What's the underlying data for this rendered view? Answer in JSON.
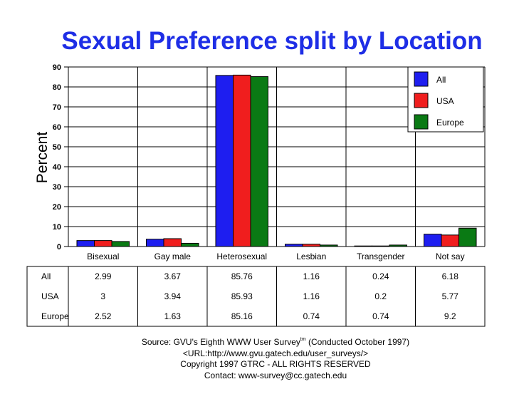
{
  "chart_data": {
    "type": "bar",
    "title": "Sexual Preference split by Location",
    "ylabel": "Percent",
    "xlabel": "",
    "ylim": [
      0,
      90
    ],
    "yticks": [
      "0",
      "10",
      "20",
      "30",
      "40",
      "50",
      "60",
      "70",
      "80",
      "90"
    ],
    "grid": true,
    "legend_position": "top-right",
    "categories": [
      "Bisexual",
      "Gay male",
      "Heterosexual",
      "Lesbian",
      "Transgender",
      "Not say"
    ],
    "series": [
      {
        "name": "All",
        "color": "#1e1ef0",
        "values": [
          2.99,
          3.67,
          85.76,
          1.16,
          0.24,
          6.18
        ],
        "labels": [
          "2.99",
          "3.67",
          "85.76",
          "1.16",
          "0.24",
          "6.18"
        ]
      },
      {
        "name": "USA",
        "color": "#f01e1e",
        "values": [
          3,
          3.94,
          85.93,
          1.16,
          0.2,
          5.77
        ],
        "labels": [
          "3",
          "3.94",
          "85.93",
          "1.16",
          "0.2",
          "5.77"
        ]
      },
      {
        "name": "Europe",
        "color": "#0a7a14",
        "values": [
          2.52,
          1.63,
          85.16,
          0.74,
          0.74,
          9.2
        ],
        "labels": [
          "2.52",
          "1.63",
          "85.16",
          "0.74",
          "0.74",
          "9.2"
        ]
      }
    ]
  },
  "source": {
    "line1_pre": "Source: GVU's Eighth WWW User Survey",
    "line1_sup": "tm",
    "line1_post": " (Conducted October 1997)",
    "line2": "<URL:http://www.gvu.gatech.edu/user_surveys/>",
    "line3": "Copyright 1997 GTRC - ALL RIGHTS RESERVED",
    "line4": "Contact: www-survey@cc.gatech.edu"
  }
}
